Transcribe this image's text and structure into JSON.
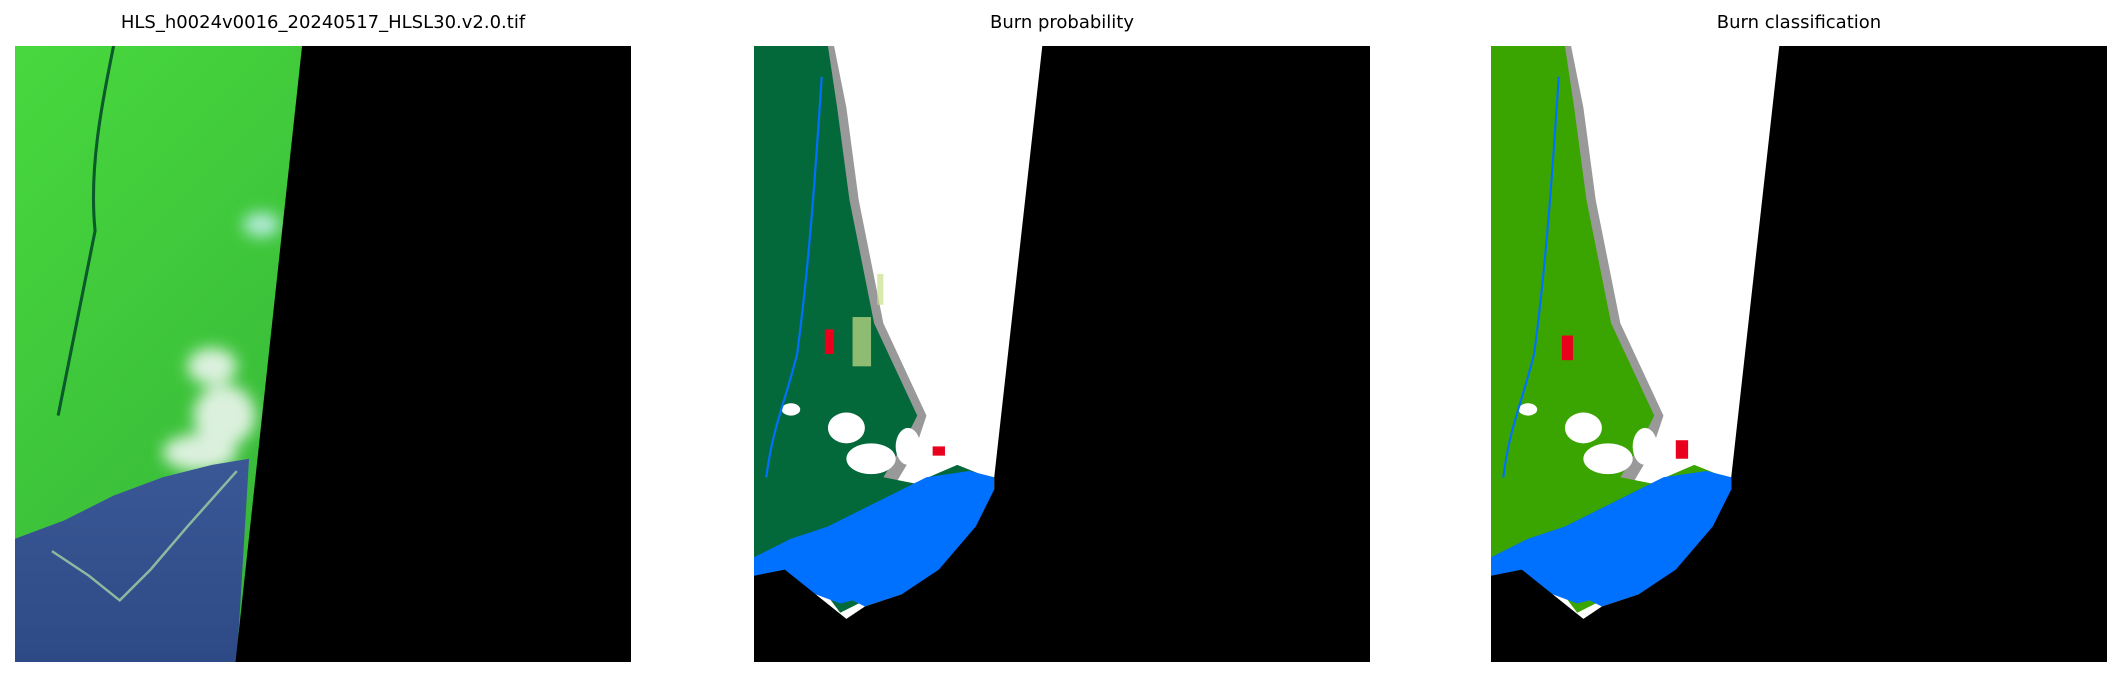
{
  "panels": [
    {
      "title": "HLS_h0024v0016_20240517_HLSL30.v2.0.tif",
      "kind": "false-color satellite image"
    },
    {
      "title": "Burn probability"
    },
    {
      "title": "Burn classification"
    }
  ],
  "colors": {
    "nodata": "#000000",
    "cloud": "#ffffff",
    "cloud_edge": "#999999",
    "water": "#0070ff",
    "probability_land": "#04693a",
    "classification_land": "#3aa500",
    "burned": "#e8001c",
    "rgb_land": "#3fd43a",
    "rgb_sea": "#36508f"
  }
}
